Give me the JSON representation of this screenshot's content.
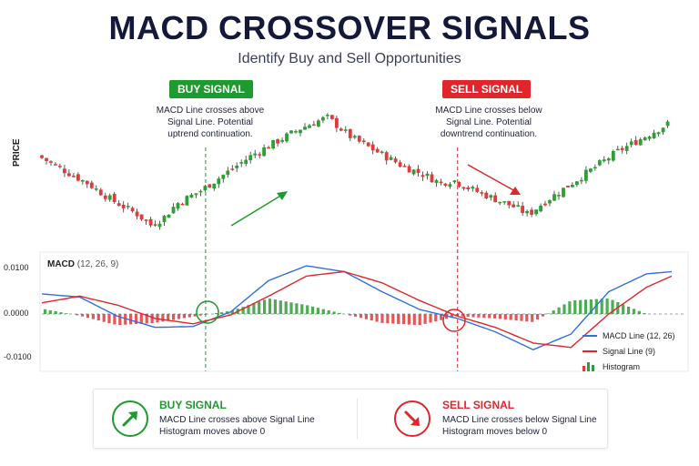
{
  "header": {
    "title": "MACD CROSSOVER SIGNALS",
    "subtitle": "Identify Buy and Sell Opportunities"
  },
  "annotations": {
    "buy_badge": "BUY SIGNAL",
    "buy_text": [
      "MACD Line crosses above",
      "Signal Line. Potential",
      "uptrend continuation."
    ],
    "sell_badge": "SELL SIGNAL",
    "sell_text": [
      "MACD Line crosses below",
      "Signal Line. Potential",
      "downtrend continuation."
    ]
  },
  "price_axis_label": "PRICE",
  "macd_panel": {
    "title": "MACD",
    "params": "(12, 26, 9)",
    "y_ticks": [
      "0.0100",
      "0.0000",
      "-0.0100"
    ],
    "legend": [
      "MACD Line (12, 26)",
      "Signal Line (9)",
      "Histogram"
    ]
  },
  "summary": {
    "buy_title": "BUY SIGNAL",
    "buy_line1": "MACD Line crosses above Signal Line",
    "buy_line2": "Histogram moves above 0",
    "sell_title": "SELL SIGNAL",
    "sell_line1": "MACD Line crosses below Signal Line",
    "sell_line2": "Histogram moves below 0"
  },
  "colors": {
    "bull": "#2e9e35",
    "bear": "#e03a3a",
    "macd_line": "#2f6fe0",
    "signal_line": "#e0262a",
    "buy": "#1e9a2e",
    "sell": "#e0262a"
  },
  "chart_data": {
    "type": "line",
    "title": "MACD CROSSOVER SIGNALS",
    "ylabel": "",
    "ylim": [
      -0.013,
      0.013
    ],
    "x_range": [
      0,
      100
    ],
    "series": [
      {
        "name": "MACD Line (12, 26)",
        "x": [
          0,
          6,
          12,
          18,
          24,
          30,
          36,
          42,
          48,
          54,
          60,
          66,
          72,
          78,
          84,
          90,
          96,
          100
        ],
        "values": [
          0.0045,
          0.0038,
          -0.0005,
          -0.003,
          -0.0028,
          0.0005,
          0.0075,
          0.0108,
          0.0095,
          0.005,
          0.001,
          -0.001,
          -0.004,
          -0.008,
          -0.0045,
          0.005,
          0.009,
          0.0095
        ]
      },
      {
        "name": "Signal Line (9)",
        "x": [
          0,
          6,
          12,
          18,
          24,
          30,
          36,
          42,
          48,
          54,
          60,
          66,
          72,
          78,
          84,
          90,
          96,
          100
        ],
        "values": [
          0.0025,
          0.004,
          0.002,
          -0.001,
          -0.0022,
          -0.0002,
          0.004,
          0.0085,
          0.0095,
          0.007,
          0.003,
          -0.0005,
          -0.003,
          -0.0065,
          -0.0075,
          0.0,
          0.006,
          0.0085
        ]
      },
      {
        "name": "Histogram",
        "x": [
          0,
          6,
          12,
          18,
          24,
          30,
          36,
          42,
          48,
          54,
          60,
          66,
          72,
          78,
          84,
          90,
          96,
          100
        ],
        "values": [
          0.0012,
          -0.0004,
          -0.0025,
          -0.002,
          -0.0006,
          0.0007,
          0.0035,
          0.002,
          0.0,
          -0.002,
          -0.0025,
          -0.0005,
          -0.001,
          -0.0018,
          0.003,
          0.0035,
          0.0,
          0.0
        ]
      }
    ],
    "price_series": {
      "x": [
        0,
        4,
        8,
        12,
        16,
        18,
        20,
        22,
        26,
        30,
        34,
        38,
        42,
        46,
        50,
        54,
        58,
        62,
        64,
        66,
        68,
        72,
        76,
        78,
        80,
        84,
        88,
        92,
        96,
        100
      ],
      "values": [
        100,
        96,
        92,
        87,
        83,
        80,
        82,
        86,
        90,
        95,
        100,
        104,
        108,
        111,
        105,
        101,
        97,
        94,
        92,
        93,
        91,
        88,
        85,
        83,
        86,
        91,
        96,
        101,
        105,
        109
      ]
    },
    "markers": [
      {
        "label": "BUY SIGNAL",
        "x": 26
      },
      {
        "label": "SELL SIGNAL",
        "x": 66
      }
    ],
    "grid": false
  }
}
